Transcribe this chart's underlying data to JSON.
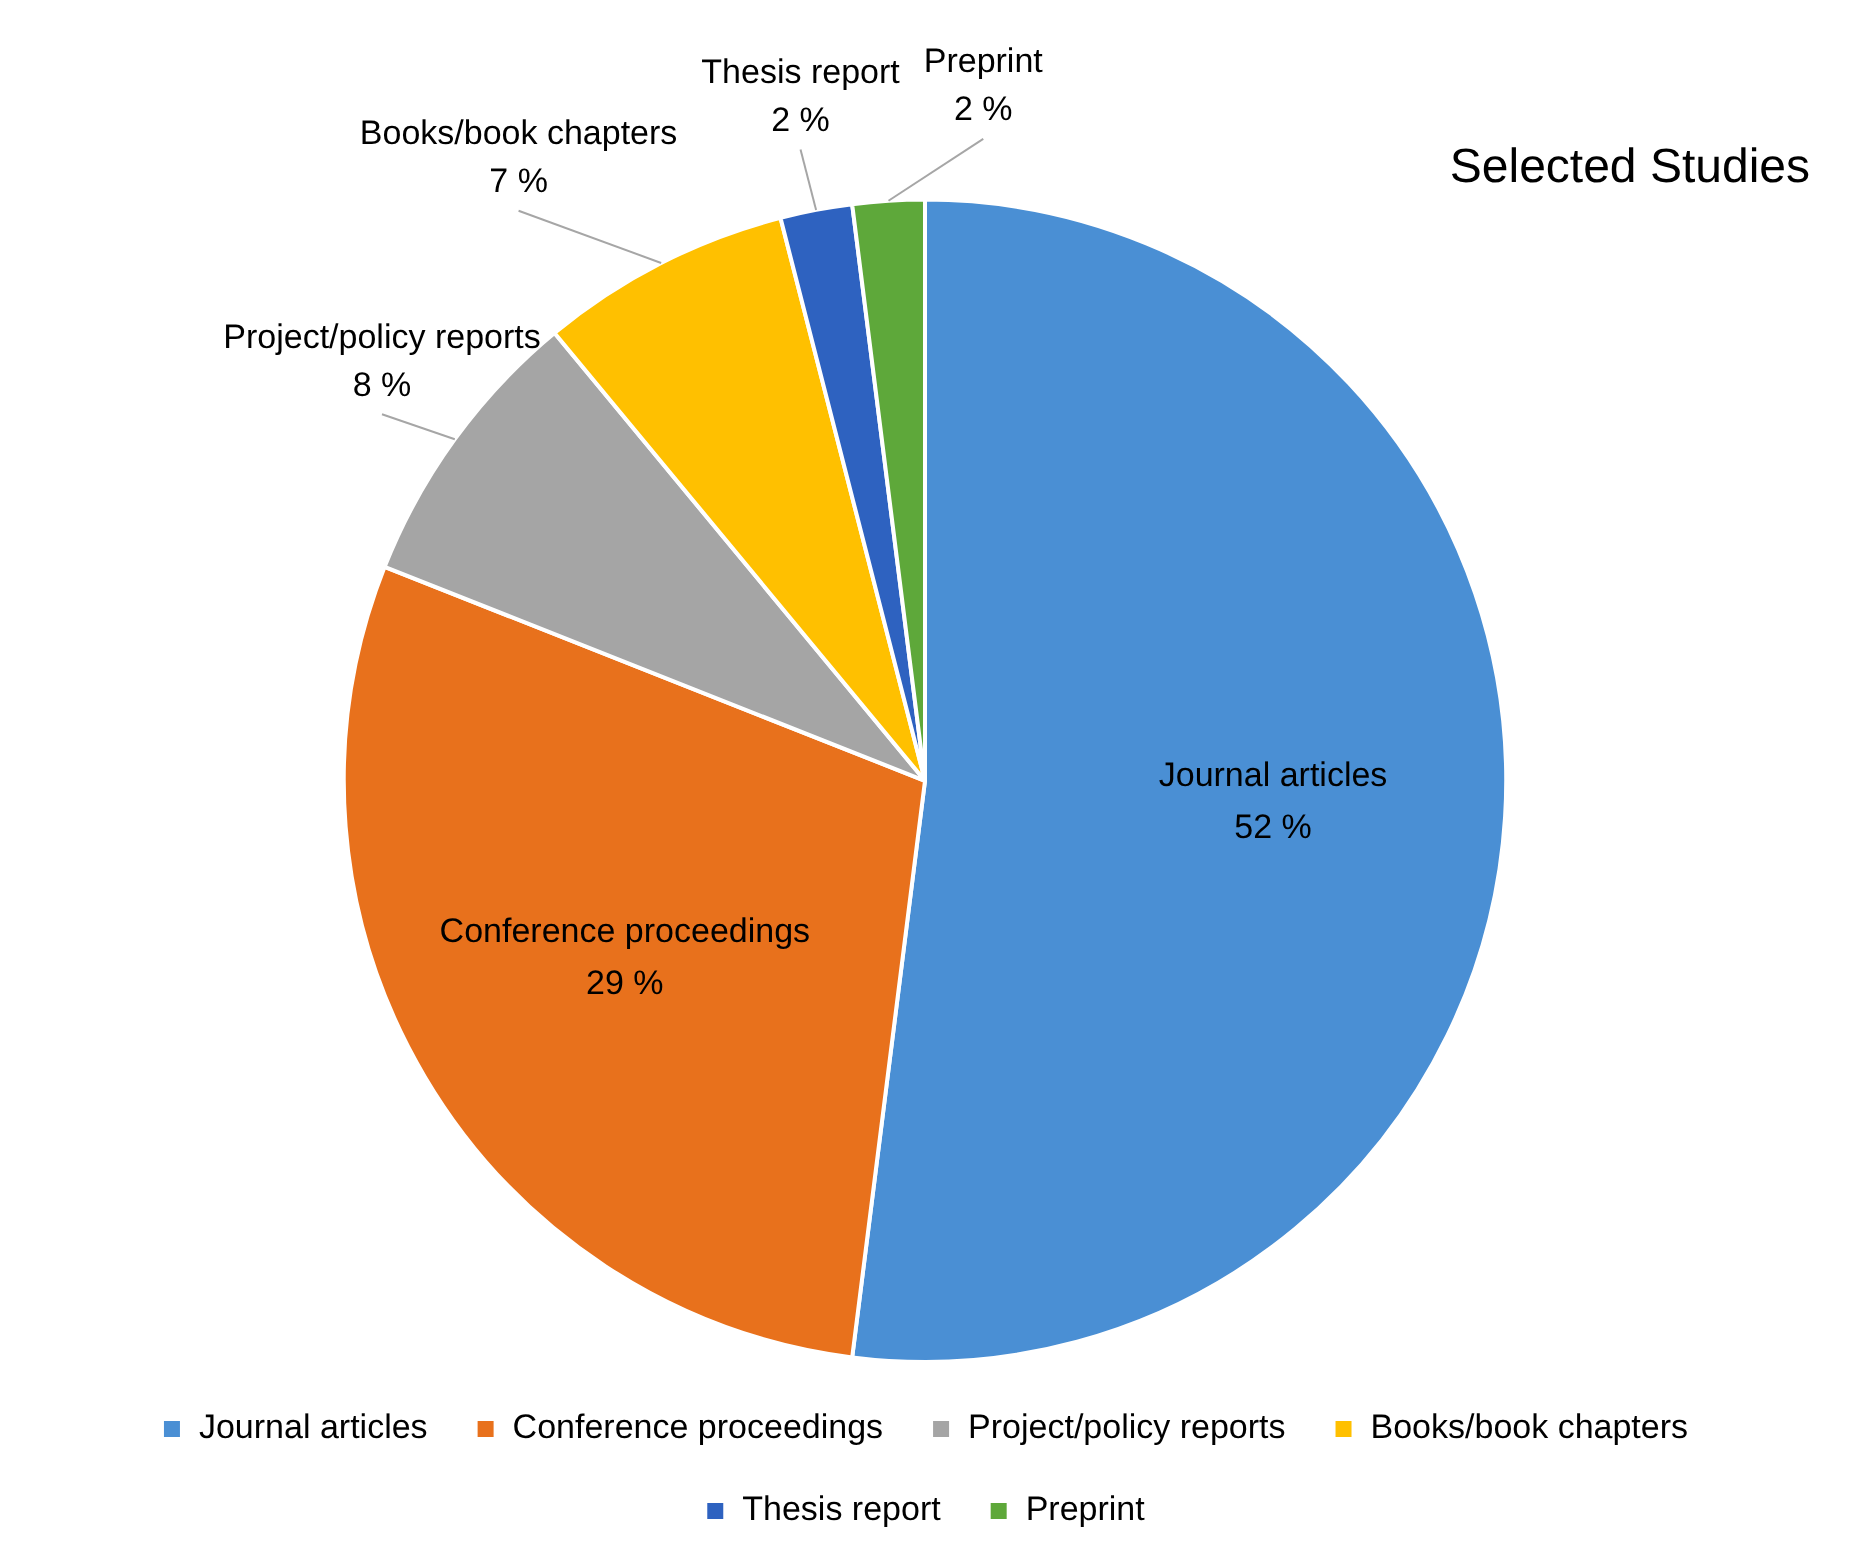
{
  "chart_data": {
    "type": "pie",
    "title": "Selected Studies",
    "categories": [
      "Journal articles",
      "Conference proceedings",
      "Project/policy reports",
      "Books/book chapters",
      "Thesis report",
      "Preprint"
    ],
    "values": [
      52,
      29,
      8,
      7,
      2,
      2
    ],
    "value_labels": [
      "52 %",
      "29 %",
      "8 %",
      "7 %",
      "2 %",
      "2 %"
    ],
    "colors": [
      "#4a8fd4",
      "#e8711c",
      "#a5a5a5",
      "#ffc000",
      "#2e62c0",
      "#5ea83a"
    ],
    "legend": "bottom"
  }
}
